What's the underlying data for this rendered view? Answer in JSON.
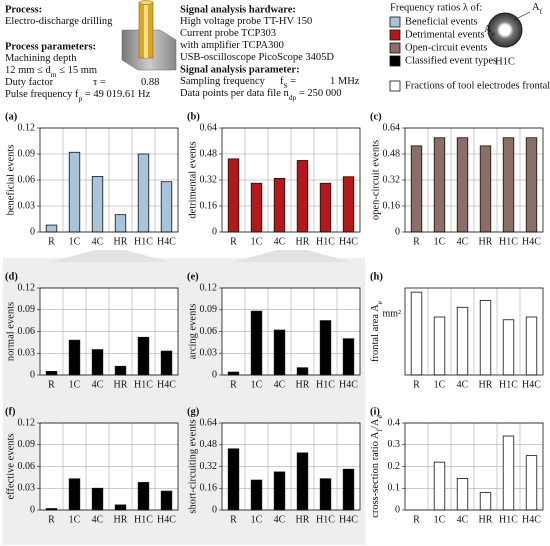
{
  "header": {
    "process": {
      "title": "Process:",
      "lines": [
        [
          "Electro-discharge drilling"
        ]
      ]
    },
    "parameters": {
      "title": "Process parameters:",
      "lines": [
        [
          "Machining depth"
        ],
        [
          "12 mm ≤ d",
          {
            "sub": "m"
          },
          " ≤ 15 mm"
        ],
        [
          "Duty factor",
          "τ =",
          "0.88"
        ],
        [
          "Pulse frequency f",
          {
            "sub": "p"
          },
          " = 49 019.61 Hz"
        ]
      ]
    },
    "hardware": {
      "title": "Signal analysis hardware:",
      "lines": [
        [
          "High voltage probe TT-HV 150"
        ],
        [
          "Current probe TCP303"
        ],
        [
          "with amplifier TCPA300"
        ],
        [
          "USB-oscilloscope PicoScope 3405D"
        ]
      ]
    },
    "analysis": {
      "title": "Signal analysis parameter:",
      "lines": [
        [
          "Sampling frequency",
          "f",
          {
            "sub": "S"
          },
          " =",
          "1 MHz"
        ],
        [
          "Data points per data file n",
          {
            "sub": "dp"
          },
          " = 250 000"
        ]
      ]
    }
  },
  "legend": {
    "title": "Frequency ratios λ of:",
    "items": [
      {
        "label": "Beneficial events",
        "color": "#a9c3d8"
      },
      {
        "label": "Detrimental events",
        "color": "#b3191c"
      },
      {
        "label": "Open-circuit events",
        "color": "#8c6e68"
      },
      {
        "label": "Classified event types",
        "color": "#000000"
      },
      {
        "label": "Fractions of tool electrodes frontal area",
        "color": "#ffffff"
      }
    ]
  },
  "icon": {
    "name": "H1C",
    "outer": [
      "A",
      {
        "sub": "f"
      }
    ],
    "inner": [
      "A",
      {
        "sub": "e"
      }
    ]
  },
  "chart_data": [
    {
      "type": "bar",
      "label": "(a)",
      "y_label": "beneficial events",
      "categories": [
        "R",
        "1C",
        "4C",
        "HR",
        "H1C",
        "H4C"
      ],
      "values": [
        0.008,
        0.092,
        0.064,
        0.02,
        0.09,
        0.058
      ],
      "color": "#a9c3d8",
      "ylim": [
        0,
        0.12
      ],
      "yticks": [
        0,
        0.03,
        0.06,
        0.09,
        0.12
      ],
      "grid": true
    },
    {
      "type": "bar",
      "label": "(b)",
      "y_label": "detrimental events",
      "categories": [
        "R",
        "1C",
        "4C",
        "HR",
        "H1C",
        "H4C"
      ],
      "values": [
        0.45,
        0.3,
        0.33,
        0.44,
        0.3,
        0.34
      ],
      "color": "#b3191c",
      "ylim": [
        0,
        0.64
      ],
      "yticks": [
        0,
        0.16,
        0.32,
        0.48,
        0.64
      ],
      "grid": true
    },
    {
      "type": "bar",
      "label": "(c)",
      "y_label": "open-circuit events",
      "categories": [
        "R",
        "1C",
        "4C",
        "HR",
        "H1C",
        "H4C"
      ],
      "values": [
        0.53,
        0.58,
        0.58,
        0.53,
        0.58,
        0.58
      ],
      "color": "#8c6e68",
      "ylim": [
        0,
        0.64
      ],
      "yticks": [
        0,
        0.16,
        0.32,
        0.48,
        0.64
      ],
      "grid": true
    },
    {
      "type": "bar",
      "label": "(d)",
      "y_label": "normal events",
      "categories": [
        "R",
        "1C",
        "4C",
        "HR",
        "H1C",
        "H4C"
      ],
      "values": [
        0.005,
        0.048,
        0.035,
        0.012,
        0.052,
        0.033
      ],
      "color": "#000000",
      "ylim": [
        0,
        0.12
      ],
      "yticks": [
        0,
        0.03,
        0.06,
        0.09,
        0.12
      ],
      "grid": true
    },
    {
      "type": "bar",
      "label": "(e)",
      "y_label": "arcing events",
      "categories": [
        "R",
        "1C",
        "4C",
        "HR",
        "H1C",
        "H4C"
      ],
      "values": [
        0.004,
        0.088,
        0.062,
        0.01,
        0.075,
        0.05
      ],
      "color": "#000000",
      "ylim": [
        0,
        0.12
      ],
      "yticks": [
        0,
        0.03,
        0.06,
        0.09,
        0.12
      ],
      "grid": true
    },
    {
      "type": "bar",
      "label": "(h)",
      "y_label": [
        "frontal area A",
        {
          "sub": "e"
        }
      ],
      "y_unit": "mm²",
      "categories": [
        "R",
        "1C",
        "4C",
        "HR",
        "H1C",
        "H4C"
      ],
      "values": [
        6.0,
        4.2,
        4.9,
        5.4,
        4.0,
        4.2
      ],
      "color": "#ffffff",
      "ylim": [
        0,
        6.3
      ],
      "yticks": [],
      "grid": true
    },
    {
      "type": "bar",
      "label": "(f)",
      "y_label": "effective events",
      "categories": [
        "R",
        "1C",
        "4C",
        "HR",
        "H1C",
        "H4C"
      ],
      "values": [
        0.002,
        0.043,
        0.03,
        0.007,
        0.038,
        0.026
      ],
      "color": "#000000",
      "ylim": [
        0,
        0.12
      ],
      "yticks": [
        0,
        0.03,
        0.06,
        0.09,
        0.12
      ],
      "grid": true
    },
    {
      "type": "bar",
      "label": "(g)",
      "y_label": "short-circuiting events",
      "categories": [
        "R",
        "1C",
        "4C",
        "HR",
        "H1C",
        "H4C"
      ],
      "values": [
        0.45,
        0.22,
        0.28,
        0.42,
        0.23,
        0.3
      ],
      "color": "#000000",
      "ylim": [
        0,
        0.64
      ],
      "yticks": [
        0,
        0.16,
        0.32,
        0.48,
        0.64
      ],
      "grid": true
    },
    {
      "type": "bar",
      "label": "(i)",
      "y_label": [
        "cross-section ratio A",
        {
          "sub": "f"
        },
        "/A",
        {
          "sub": "e"
        }
      ],
      "categories": [
        "R",
        "1C",
        "4C",
        "HR",
        "H1C",
        "H4C"
      ],
      "values": [
        null,
        0.22,
        0.145,
        0.08,
        0.34,
        0.25
      ],
      "color": "#ffffff",
      "ylim": [
        0,
        0.4
      ],
      "yticks": [
        0,
        0.1,
        0.2,
        0.3,
        0.4
      ],
      "grid": true
    }
  ]
}
